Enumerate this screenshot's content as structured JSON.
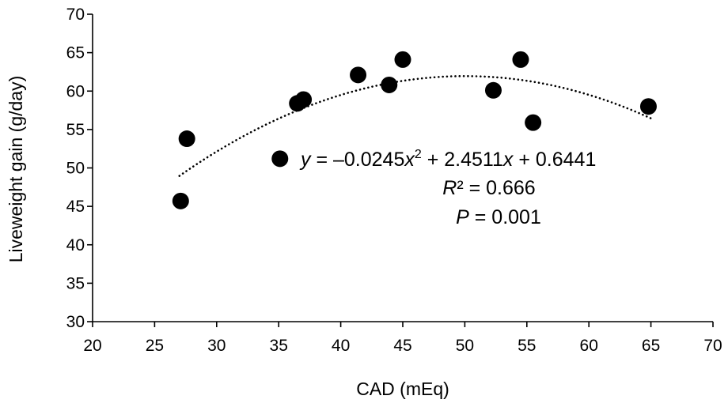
{
  "chart_data": {
    "type": "scatter",
    "title": "",
    "xlabel": "CAD (mEq)",
    "ylabel": "Liveweight gain (g/day)",
    "xlim": [
      20,
      70
    ],
    "ylim": [
      30,
      70
    ],
    "xticks": [
      20,
      25,
      30,
      35,
      40,
      45,
      50,
      55,
      60,
      65,
      70
    ],
    "yticks": [
      30,
      35,
      40,
      45,
      50,
      55,
      60,
      65,
      70
    ],
    "grid": false,
    "points": [
      {
        "x": 27.1,
        "y": 45.7
      },
      {
        "x": 27.6,
        "y": 53.8
      },
      {
        "x": 35.1,
        "y": 51.2
      },
      {
        "x": 36.5,
        "y": 58.4
      },
      {
        "x": 37.0,
        "y": 58.9
      },
      {
        "x": 41.4,
        "y": 62.1
      },
      {
        "x": 43.9,
        "y": 60.8
      },
      {
        "x": 45.0,
        "y": 64.1
      },
      {
        "x": 52.3,
        "y": 60.1
      },
      {
        "x": 54.5,
        "y": 64.1
      },
      {
        "x": 55.5,
        "y": 55.9
      },
      {
        "x": 64.8,
        "y": 58.0
      }
    ],
    "trendline": {
      "type": "polynomial",
      "coefficients": [
        -0.0245,
        2.4511,
        0.6441
      ],
      "x_range": [
        27,
        65
      ],
      "style": "dotted"
    },
    "annotations": {
      "equation": {
        "y": "y",
        "eq_a": " = –0.0245",
        "x1": "x",
        "sup": "2",
        "eq_b": " + 2.4511",
        "x2": "x",
        "eq_c": " + 0.6441"
      },
      "r2": {
        "r": "R",
        "rest": "² = 0.666"
      },
      "p": {
        "p": "P",
        "rest": " = 0.001"
      }
    }
  }
}
